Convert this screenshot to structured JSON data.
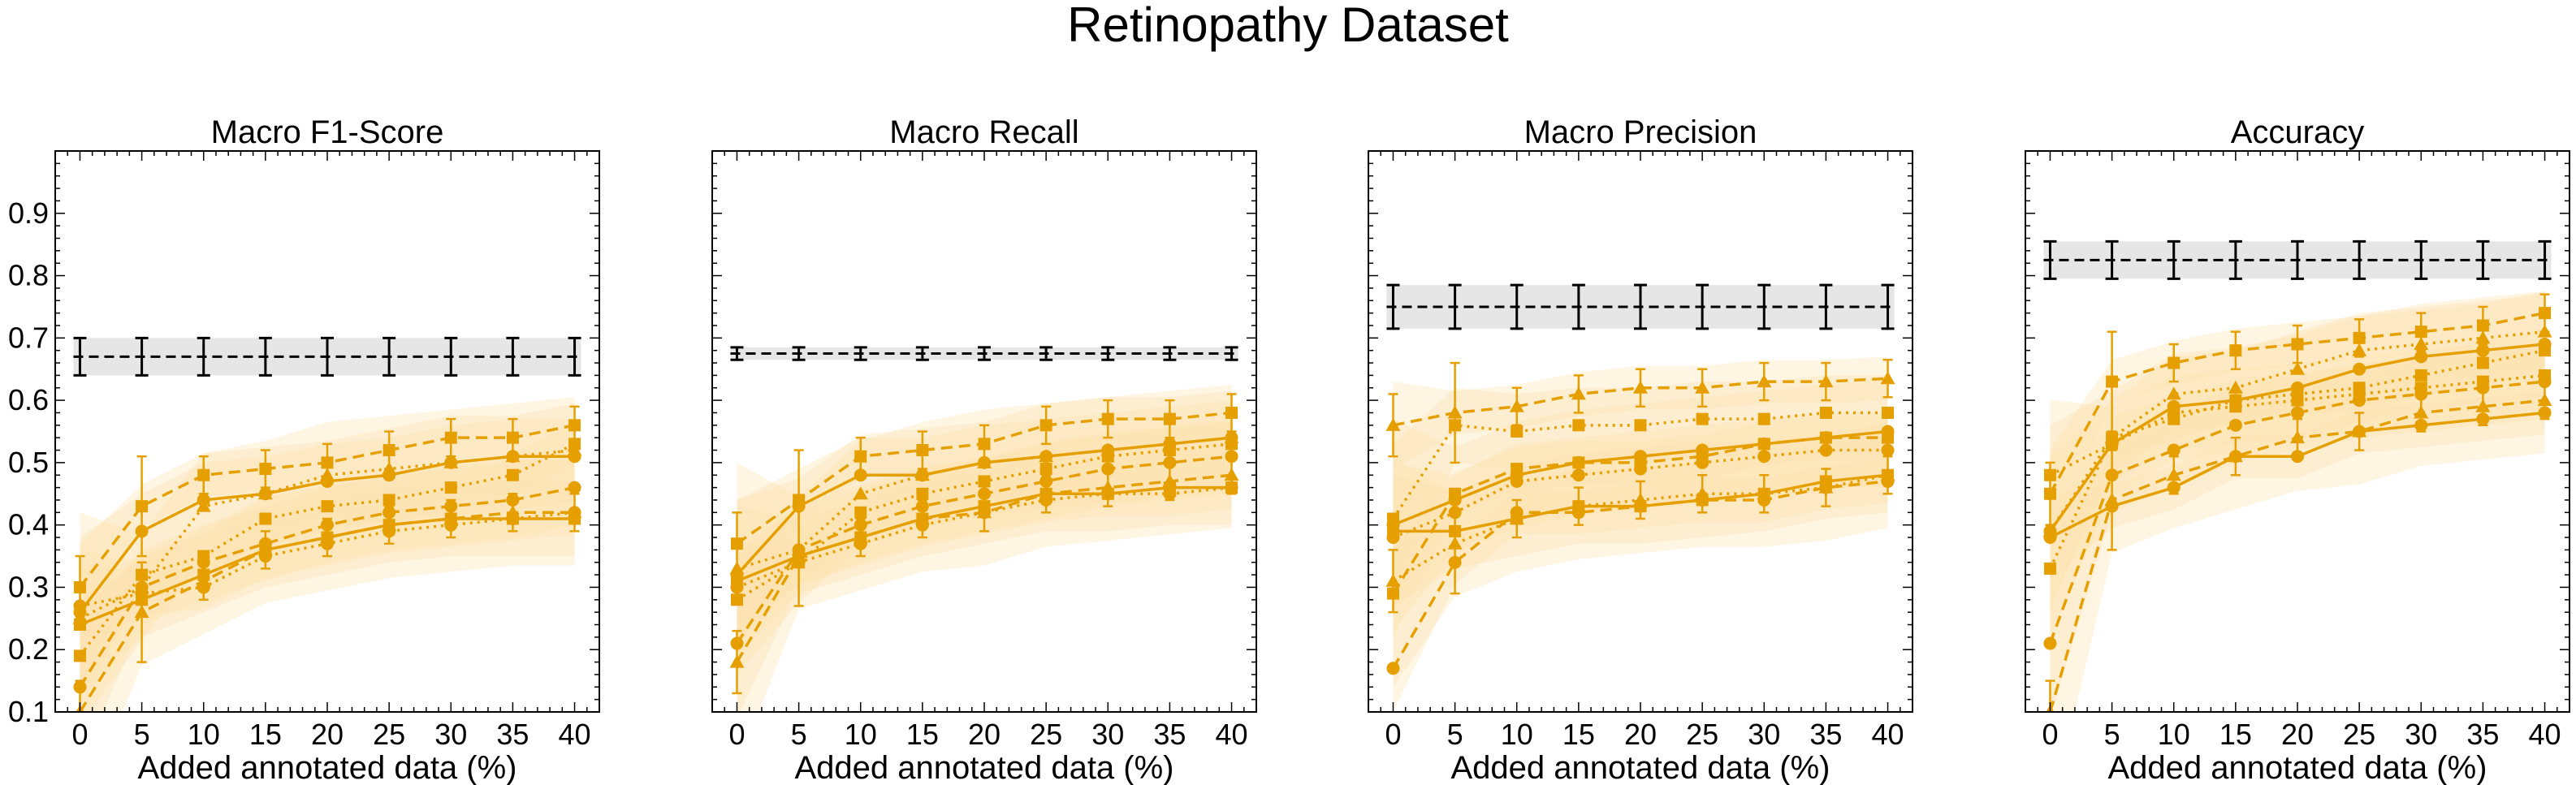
{
  "figure_title": "Retinopathy Dataset",
  "colors": {
    "series": "#E69F00",
    "baseline": "#000000",
    "baseline_band": "#e6e6e6",
    "band": "#fbe3b0"
  },
  "chart_data": [
    {
      "type": "line",
      "title": "Macro F1-Score",
      "xlabel": "Added annotated data (%)",
      "ylabel": "",
      "x": [
        0,
        5,
        10,
        15,
        20,
        25,
        30,
        35,
        40
      ],
      "xlim": [
        -2,
        42
      ],
      "ylim": [
        0.1,
        1.0
      ],
      "yticks": [
        "0.1",
        "0.2",
        "0.3",
        "0.4",
        "0.5",
        "0.6",
        "0.7",
        "0.8",
        "0.9"
      ],
      "baseline": {
        "value": 0.67,
        "error": 0.03
      },
      "series": [
        {
          "values": [
            0.3,
            0.43,
            0.48,
            0.49,
            0.5,
            0.52,
            0.54,
            0.54,
            0.56
          ],
          "marker": "square",
          "style": "dashed"
        },
        {
          "values": [
            0.26,
            0.39,
            0.44,
            0.45,
            0.47,
            0.48,
            0.5,
            0.51,
            0.51
          ],
          "marker": "circle",
          "style": "solid"
        },
        {
          "values": [
            0.25,
            0.3,
            0.43,
            0.45,
            0.48,
            0.49,
            0.5,
            0.51,
            0.52
          ],
          "marker": "triangle",
          "style": "dotted"
        },
        {
          "values": [
            0.19,
            0.32,
            0.35,
            0.41,
            0.43,
            0.44,
            0.46,
            0.48,
            0.53
          ],
          "marker": "square",
          "style": "dotted"
        },
        {
          "values": [
            0.14,
            0.3,
            0.34,
            0.37,
            0.4,
            0.42,
            0.43,
            0.44,
            0.46
          ],
          "marker": "circle",
          "style": "dashed"
        },
        {
          "values": [
            0.1,
            0.26,
            0.31,
            0.36,
            0.38,
            0.4,
            0.41,
            0.42,
            0.42
          ],
          "marker": "triangle",
          "style": "dashed"
        },
        {
          "values": [
            0.27,
            0.29,
            0.3,
            0.35,
            0.37,
            0.39,
            0.4,
            0.41,
            0.42
          ],
          "marker": "circle",
          "style": "dotted"
        },
        {
          "values": [
            0.24,
            0.28,
            0.32,
            0.36,
            0.38,
            0.4,
            0.41,
            0.41,
            0.41
          ],
          "marker": "square",
          "style": "solid"
        }
      ]
    },
    {
      "type": "line",
      "title": "Macro Recall",
      "xlabel": "Added annotated data (%)",
      "ylabel": "",
      "x": [
        0,
        5,
        10,
        15,
        20,
        25,
        30,
        35,
        40
      ],
      "xlim": [
        -2,
        42
      ],
      "ylim": [
        0.1,
        1.0
      ],
      "yticks": [],
      "baseline": {
        "value": 0.675,
        "error": 0.01
      },
      "series": [
        {
          "values": [
            0.37,
            0.44,
            0.51,
            0.52,
            0.53,
            0.56,
            0.57,
            0.57,
            0.58
          ],
          "marker": "square",
          "style": "dashed"
        },
        {
          "values": [
            0.32,
            0.43,
            0.48,
            0.48,
            0.5,
            0.51,
            0.52,
            0.53,
            0.54
          ],
          "marker": "circle",
          "style": "solid"
        },
        {
          "values": [
            0.33,
            0.36,
            0.45,
            0.48,
            0.5,
            0.51,
            0.52,
            0.53,
            0.54
          ],
          "marker": "triangle",
          "style": "dotted"
        },
        {
          "values": [
            0.28,
            0.34,
            0.42,
            0.45,
            0.47,
            0.49,
            0.51,
            0.52,
            0.53
          ],
          "marker": "square",
          "style": "dotted"
        },
        {
          "values": [
            0.21,
            0.36,
            0.4,
            0.43,
            0.45,
            0.47,
            0.49,
            0.5,
            0.51
          ],
          "marker": "circle",
          "style": "dashed"
        },
        {
          "values": [
            0.18,
            0.35,
            0.38,
            0.41,
            0.42,
            0.45,
            0.46,
            0.47,
            0.48
          ],
          "marker": "triangle",
          "style": "dashed"
        },
        {
          "values": [
            0.3,
            0.34,
            0.37,
            0.4,
            0.42,
            0.44,
            0.45,
            0.45,
            0.46
          ],
          "marker": "circle",
          "style": "dotted"
        },
        {
          "values": [
            0.31,
            0.35,
            0.38,
            0.41,
            0.43,
            0.45,
            0.45,
            0.46,
            0.46
          ],
          "marker": "square",
          "style": "solid"
        }
      ]
    },
    {
      "type": "line",
      "title": "Macro Precision",
      "xlabel": "Added annotated data (%)",
      "ylabel": "",
      "x": [
        0,
        5,
        10,
        15,
        20,
        25,
        30,
        35,
        40
      ],
      "xlim": [
        -2,
        42
      ],
      "ylim": [
        0.1,
        1.0
      ],
      "yticks": [],
      "baseline": {
        "value": 0.75,
        "error": 0.035
      },
      "series": [
        {
          "values": [
            0.56,
            0.58,
            0.59,
            0.61,
            0.62,
            0.62,
            0.63,
            0.63,
            0.635
          ],
          "marker": "triangle",
          "style": "dashed"
        },
        {
          "values": [
            0.41,
            0.56,
            0.55,
            0.56,
            0.56,
            0.57,
            0.57,
            0.58,
            0.58
          ],
          "marker": "square",
          "style": "dotted"
        },
        {
          "values": [
            0.4,
            0.44,
            0.48,
            0.5,
            0.51,
            0.52,
            0.53,
            0.54,
            0.55
          ],
          "marker": "circle",
          "style": "solid"
        },
        {
          "values": [
            0.29,
            0.45,
            0.49,
            0.5,
            0.5,
            0.51,
            0.53,
            0.54,
            0.54
          ],
          "marker": "square",
          "style": "dashed"
        },
        {
          "values": [
            0.38,
            0.42,
            0.47,
            0.48,
            0.49,
            0.5,
            0.51,
            0.52,
            0.52
          ],
          "marker": "circle",
          "style": "dotted"
        },
        {
          "values": [
            0.31,
            0.37,
            0.41,
            0.43,
            0.44,
            0.45,
            0.45,
            0.46,
            0.48
          ],
          "marker": "triangle",
          "style": "dotted"
        },
        {
          "values": [
            0.17,
            0.34,
            0.42,
            0.42,
            0.43,
            0.44,
            0.44,
            0.46,
            0.47
          ],
          "marker": "circle",
          "style": "dashed"
        },
        {
          "values": [
            0.39,
            0.39,
            0.41,
            0.43,
            0.43,
            0.44,
            0.45,
            0.47,
            0.48
          ],
          "marker": "square",
          "style": "solid"
        }
      ]
    },
    {
      "type": "line",
      "title": "Accuracy",
      "xlabel": "Added annotated data (%)",
      "ylabel": "",
      "x": [
        0,
        5,
        10,
        15,
        20,
        25,
        30,
        35,
        40
      ],
      "xlim": [
        -2,
        42
      ],
      "ylim": [
        0.1,
        1.0
      ],
      "yticks": [],
      "baseline": {
        "value": 0.825,
        "error": 0.03
      },
      "series": [
        {
          "values": [
            0.45,
            0.63,
            0.66,
            0.68,
            0.69,
            0.7,
            0.71,
            0.72,
            0.74
          ],
          "marker": "square",
          "style": "dashed"
        },
        {
          "values": [
            0.39,
            0.54,
            0.61,
            0.62,
            0.65,
            0.68,
            0.69,
            0.7,
            0.71
          ],
          "marker": "triangle",
          "style": "dotted"
        },
        {
          "values": [
            0.39,
            0.53,
            0.59,
            0.6,
            0.62,
            0.65,
            0.67,
            0.68,
            0.69
          ],
          "marker": "circle",
          "style": "solid"
        },
        {
          "values": [
            0.33,
            0.54,
            0.57,
            0.6,
            0.61,
            0.62,
            0.64,
            0.66,
            0.68
          ],
          "marker": "square",
          "style": "dotted"
        },
        {
          "values": [
            0.21,
            0.48,
            0.52,
            0.56,
            0.58,
            0.6,
            0.61,
            0.62,
            0.63
          ],
          "marker": "circle",
          "style": "dashed"
        },
        {
          "values": [
            0.1,
            0.44,
            0.48,
            0.51,
            0.54,
            0.55,
            0.58,
            0.59,
            0.6
          ],
          "marker": "triangle",
          "style": "dashed"
        },
        {
          "values": [
            0.38,
            0.43,
            0.46,
            0.51,
            0.51,
            0.55,
            0.56,
            0.57,
            0.58
          ],
          "marker": "circle",
          "style": "solid"
        },
        {
          "values": [
            0.48,
            0.53,
            0.58,
            0.59,
            0.6,
            0.61,
            0.62,
            0.63,
            0.64
          ],
          "marker": "square",
          "style": "dotted"
        }
      ]
    }
  ]
}
